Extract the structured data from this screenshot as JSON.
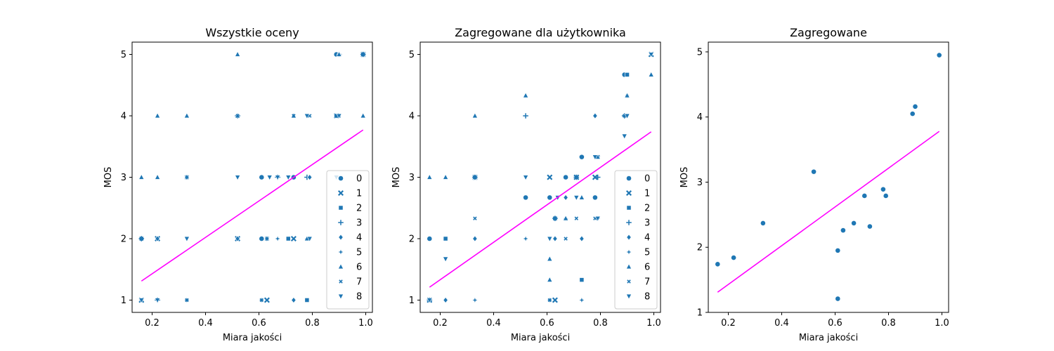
{
  "colors": {
    "marker": "#1f77b4",
    "fit_line": "#ff00ff"
  },
  "chart_data": [
    {
      "type": "scatter",
      "title": "Wszystkie oceny",
      "xlabel": "Miara jakości",
      "ylabel": "MOS",
      "xlim": [
        0.125,
        1.025
      ],
      "ylim": [
        0.8,
        5.2
      ],
      "xticks": [
        "0.2",
        "0.4",
        "0.6",
        "0.8",
        "1.0"
      ],
      "yticks": [
        "1",
        "2",
        "3",
        "4",
        "5"
      ],
      "legend": {
        "placement": "lower-right",
        "entries": [
          "0",
          "1",
          "2",
          "3",
          "4",
          "5",
          "6",
          "7",
          "8"
        ]
      },
      "fit_line": {
        "x": [
          0.16,
          0.99
        ],
        "y": [
          1.31,
          3.77
        ]
      },
      "series": [
        {
          "name": "0",
          "marker": "circle",
          "points": [
            [
              0.16,
              2
            ],
            [
              0.33,
              3
            ],
            [
              0.61,
              3
            ],
            [
              0.61,
              2
            ],
            [
              0.73,
              3
            ],
            [
              0.89,
              5
            ],
            [
              0.99,
              5
            ]
          ]
        },
        {
          "name": "1",
          "marker": "x",
          "points": [
            [
              0.16,
              1
            ],
            [
              0.22,
              2
            ],
            [
              0.52,
              2
            ],
            [
              0.63,
              1
            ],
            [
              0.73,
              2
            ],
            [
              0.89,
              4
            ],
            [
              0.99,
              5
            ]
          ]
        },
        {
          "name": "2",
          "marker": "square",
          "points": [
            [
              0.16,
              2
            ],
            [
              0.33,
              3
            ],
            [
              0.63,
              2
            ],
            [
              0.71,
              2
            ],
            [
              0.78,
              1
            ],
            [
              0.89,
              4
            ],
            [
              0.99,
              5
            ]
          ]
        },
        {
          "name": "3",
          "marker": "plus",
          "points": [
            [
              0.16,
              2
            ],
            [
              0.22,
              1
            ],
            [
              0.52,
              4
            ],
            [
              0.67,
              3
            ],
            [
              0.78,
              3
            ],
            [
              0.9,
              5
            ],
            [
              0.99,
              5
            ]
          ]
        },
        {
          "name": "4",
          "marker": "diamond",
          "points": [
            [
              0.22,
              2
            ],
            [
              0.33,
              3
            ],
            [
              0.52,
              2
            ],
            [
              0.63,
              2
            ],
            [
              0.73,
              1
            ],
            [
              0.79,
              3
            ],
            [
              0.9,
              5
            ]
          ]
        },
        {
          "name": "5",
          "marker": "star",
          "points": [
            [
              0.16,
              1
            ],
            [
              0.33,
              1
            ],
            [
              0.61,
              1
            ],
            [
              0.67,
              2
            ],
            [
              0.73,
              3
            ],
            [
              0.78,
              2
            ],
            [
              0.89,
              4
            ]
          ]
        },
        {
          "name": "6",
          "marker": "triangle-up",
          "points": [
            [
              0.16,
              3
            ],
            [
              0.22,
              3
            ],
            [
              0.22,
              4
            ],
            [
              0.33,
              4
            ],
            [
              0.52,
              5
            ],
            [
              0.52,
              4
            ],
            [
              0.73,
              4
            ],
            [
              0.78,
              2
            ],
            [
              0.9,
              5
            ],
            [
              0.99,
              4
            ]
          ]
        },
        {
          "name": "7",
          "marker": "x-small",
          "points": [
            [
              0.16,
              1
            ],
            [
              0.33,
              1
            ],
            [
              0.52,
              4
            ],
            [
              0.61,
              1
            ],
            [
              0.73,
              4
            ],
            [
              0.79,
              4
            ],
            [
              0.9,
              4
            ]
          ]
        },
        {
          "name": "8",
          "marker": "triangle-down",
          "points": [
            [
              0.16,
              1
            ],
            [
              0.22,
              1
            ],
            [
              0.33,
              2
            ],
            [
              0.52,
              3
            ],
            [
              0.64,
              3
            ],
            [
              0.67,
              3
            ],
            [
              0.71,
              3
            ],
            [
              0.78,
              4
            ],
            [
              0.79,
              2
            ],
            [
              0.89,
              3
            ],
            [
              0.9,
              4
            ]
          ]
        }
      ]
    },
    {
      "type": "scatter",
      "title": "Zagregowane dla użytkownika",
      "xlabel": "Miara jakości",
      "ylabel": "MOS",
      "xlim": [
        0.125,
        1.025
      ],
      "ylim": [
        0.8,
        5.2
      ],
      "xticks": [
        "0.2",
        "0.4",
        "0.6",
        "0.8",
        "1.0"
      ],
      "yticks": [
        "1",
        "2",
        "3",
        "4",
        "5"
      ],
      "legend": {
        "placement": "lower-right",
        "entries": [
          "0",
          "1",
          "2",
          "3",
          "4",
          "5",
          "6",
          "7",
          "8"
        ]
      },
      "fit_line": {
        "x": [
          0.16,
          0.99
        ],
        "y": [
          1.21,
          3.74
        ]
      },
      "series": [
        {
          "name": "0",
          "marker": "circle",
          "points": [
            [
              0.16,
              2
            ],
            [
              0.52,
              2.67
            ],
            [
              0.61,
              2.67
            ],
            [
              0.67,
              3
            ],
            [
              0.73,
              3.33
            ],
            [
              0.78,
              2.67
            ],
            [
              0.89,
              4.67
            ]
          ]
        },
        {
          "name": "1",
          "marker": "x",
          "points": [
            [
              0.16,
              1
            ],
            [
              0.33,
              3
            ],
            [
              0.61,
              3
            ],
            [
              0.63,
              1
            ],
            [
              0.71,
              3
            ],
            [
              0.78,
              3
            ],
            [
              0.99,
              5
            ]
          ]
        },
        {
          "name": "2",
          "marker": "square",
          "points": [
            [
              0.22,
              2
            ],
            [
              0.33,
              3
            ],
            [
              0.63,
              2.33
            ],
            [
              0.73,
              1.33
            ],
            [
              0.79,
              3.33
            ],
            [
              0.9,
              4.67
            ]
          ]
        },
        {
          "name": "3",
          "marker": "plus",
          "points": [
            [
              0.16,
              1
            ],
            [
              0.33,
              3
            ],
            [
              0.52,
              4
            ],
            [
              0.63,
              2.33
            ],
            [
              0.71,
              3
            ],
            [
              0.79,
              3
            ],
            [
              0.89,
              4
            ]
          ]
        },
        {
          "name": "4",
          "marker": "diamond",
          "points": [
            [
              0.22,
              1
            ],
            [
              0.33,
              2
            ],
            [
              0.63,
              2
            ],
            [
              0.67,
              2.67
            ],
            [
              0.73,
              2
            ],
            [
              0.78,
              4
            ],
            [
              0.9,
              4.33
            ]
          ]
        },
        {
          "name": "5",
          "marker": "star",
          "points": [
            [
              0.16,
              1
            ],
            [
              0.33,
              1
            ],
            [
              0.52,
              2
            ],
            [
              0.61,
              1
            ],
            [
              0.67,
              2.33
            ],
            [
              0.73,
              1
            ],
            [
              0.79,
              2.33
            ]
          ]
        },
        {
          "name": "6",
          "marker": "triangle-up",
          "points": [
            [
              0.16,
              3
            ],
            [
              0.22,
              3
            ],
            [
              0.33,
              4
            ],
            [
              0.52,
              4.33
            ],
            [
              0.61,
              1.33
            ],
            [
              0.61,
              1.67
            ],
            [
              0.67,
              2.33
            ],
            [
              0.73,
              2.67
            ],
            [
              0.79,
              3.33
            ],
            [
              0.9,
              4.33
            ],
            [
              0.99,
              4.67
            ]
          ]
        },
        {
          "name": "7",
          "marker": "x-small",
          "points": [
            [
              0.16,
              1
            ],
            [
              0.33,
              2.33
            ],
            [
              0.61,
              1
            ],
            [
              0.67,
              2
            ],
            [
              0.71,
              2.33
            ],
            [
              0.78,
              2.33
            ],
            [
              0.89,
              4
            ]
          ]
        },
        {
          "name": "8",
          "marker": "triangle-down",
          "points": [
            [
              0.16,
              1
            ],
            [
              0.22,
              1.67
            ],
            [
              0.52,
              3
            ],
            [
              0.61,
              2
            ],
            [
              0.64,
              2.67
            ],
            [
              0.71,
              2.67
            ],
            [
              0.78,
              3.33
            ],
            [
              0.79,
              2.33
            ],
            [
              0.89,
              3.67
            ],
            [
              0.9,
              4
            ],
            [
              0.99,
              5
            ]
          ]
        }
      ]
    },
    {
      "type": "scatter",
      "title": "Zagregowane",
      "xlabel": "Miara jakości",
      "ylabel": "MOS",
      "xlim": [
        0.125,
        1.025
      ],
      "ylim": [
        1.0,
        5.15
      ],
      "xticks": [
        "0.2",
        "0.4",
        "0.6",
        "0.8",
        "1.0"
      ],
      "yticks": [
        "1",
        "2",
        "3",
        "4",
        "5"
      ],
      "fit_line": {
        "x": [
          0.16,
          0.99
        ],
        "y": [
          1.31,
          3.78
        ]
      },
      "series": [
        {
          "name": "",
          "marker": "circle",
          "points": [
            [
              0.16,
              1.74
            ],
            [
              0.22,
              1.84
            ],
            [
              0.33,
              2.37
            ],
            [
              0.52,
              3.16
            ],
            [
              0.61,
              1.95
            ],
            [
              0.61,
              1.21
            ],
            [
              0.63,
              2.26
            ],
            [
              0.67,
              2.37
            ],
            [
              0.71,
              2.79
            ],
            [
              0.73,
              2.32
            ],
            [
              0.78,
              2.89
            ],
            [
              0.79,
              2.79
            ],
            [
              0.89,
              4.05
            ],
            [
              0.9,
              4.16
            ],
            [
              0.99,
              4.95
            ]
          ]
        }
      ]
    }
  ]
}
